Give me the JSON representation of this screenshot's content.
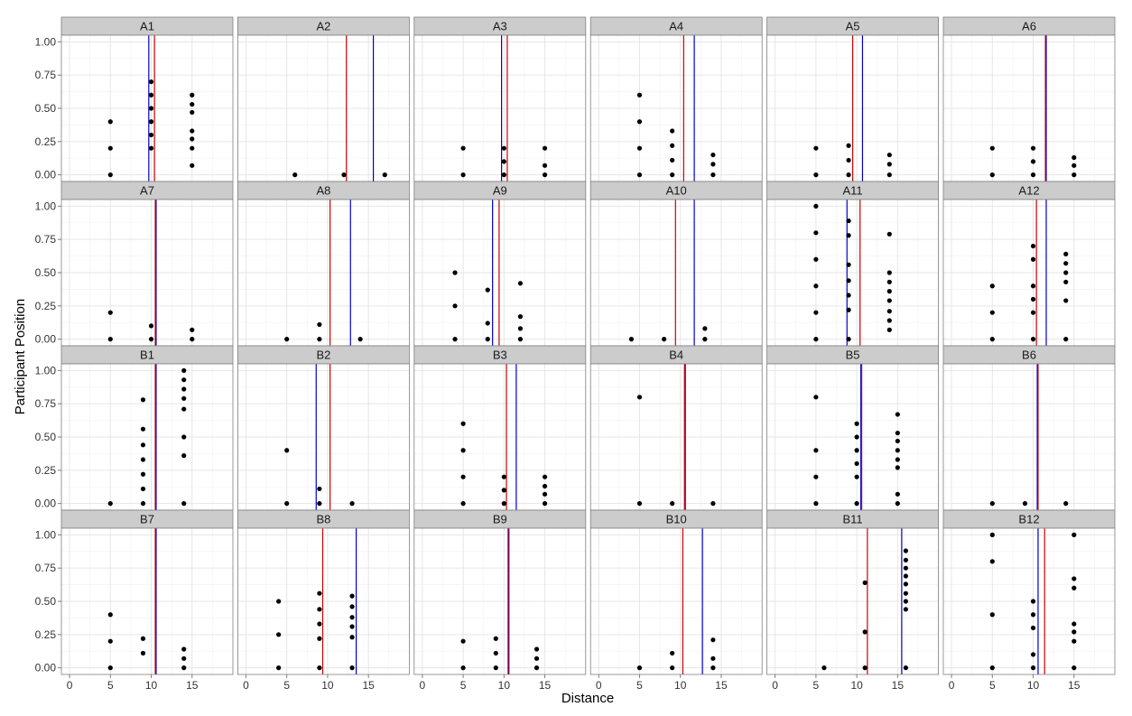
{
  "chart_data": {
    "type": "scatter",
    "xlabel": "Distance",
    "ylabel": "Participant Position",
    "xlim": [
      -1,
      20
    ],
    "ylim": [
      -0.05,
      1.05
    ],
    "x_ticks": [
      0,
      5,
      10,
      15
    ],
    "y_ticks": [
      0.0,
      0.25,
      0.5,
      0.75,
      1.0
    ],
    "y_tick_labels": [
      "0.00",
      "0.25",
      "0.50",
      "0.75",
      "1.00"
    ],
    "grid": true,
    "background": "#ffffff",
    "grid_color": "#e6e6e6",
    "strip_color": "#cccccc",
    "point_color": "#000000",
    "red_line_color": "#cc0000",
    "blue_line_color": "#0000cc",
    "columns": 6,
    "rows": 4,
    "panels": [
      {
        "label": "A1",
        "red": 10.4,
        "blue": 9.7,
        "points": [
          [
            5,
            0.4
          ],
          [
            5,
            0.2
          ],
          [
            5,
            0
          ],
          [
            10,
            0.7
          ],
          [
            10,
            0.6
          ],
          [
            10,
            0.5
          ],
          [
            10,
            0.4
          ],
          [
            10,
            0.3
          ],
          [
            10,
            0.2
          ],
          [
            15,
            0.6
          ],
          [
            15,
            0.53
          ],
          [
            15,
            0.47
          ],
          [
            15,
            0.33
          ],
          [
            15,
            0.27
          ],
          [
            15,
            0.2
          ],
          [
            15,
            0.07
          ]
        ]
      },
      {
        "label": "A2",
        "red": 12.3,
        "blue": 15.6,
        "points": [
          [
            6,
            0
          ],
          [
            12,
            0
          ],
          [
            17,
            0
          ]
        ]
      },
      {
        "label": "A3",
        "red": 10.4,
        "blue": 9.7,
        "points": [
          [
            5,
            0.2
          ],
          [
            5,
            0
          ],
          [
            10,
            0.2
          ],
          [
            10,
            0.1
          ],
          [
            10,
            0
          ],
          [
            15,
            0.2
          ],
          [
            15,
            0.07
          ],
          [
            15,
            0
          ]
        ]
      },
      {
        "label": "A4",
        "red": 10.4,
        "blue": 11.7,
        "points": [
          [
            5,
            0.6
          ],
          [
            5,
            0.4
          ],
          [
            5,
            0.2
          ],
          [
            5,
            0
          ],
          [
            9,
            0.33
          ],
          [
            9,
            0.22
          ],
          [
            9,
            0.11
          ],
          [
            9,
            0
          ],
          [
            14,
            0.15
          ],
          [
            14,
            0.08
          ],
          [
            14,
            0
          ]
        ]
      },
      {
        "label": "A5",
        "red": 9.5,
        "blue": 10.7,
        "points": [
          [
            5,
            0.2
          ],
          [
            5,
            0
          ],
          [
            9,
            0.22
          ],
          [
            9,
            0.11
          ],
          [
            9,
            0
          ],
          [
            14,
            0.15
          ],
          [
            14,
            0.08
          ],
          [
            14,
            0
          ]
        ]
      },
      {
        "label": "A6",
        "red": 11.5,
        "blue": 11.6,
        "points": [
          [
            5,
            0.2
          ],
          [
            5,
            0
          ],
          [
            10,
            0.2
          ],
          [
            10,
            0.1
          ],
          [
            10,
            0
          ],
          [
            15,
            0.13
          ],
          [
            15,
            0.07
          ],
          [
            15,
            0
          ]
        ]
      },
      {
        "label": "A7",
        "red": 10.5,
        "blue": 10.6,
        "points": [
          [
            5,
            0.2
          ],
          [
            5,
            0
          ],
          [
            10,
            0.1
          ],
          [
            10,
            0
          ],
          [
            15,
            0.07
          ],
          [
            15,
            0
          ]
        ]
      },
      {
        "label": "A8",
        "red": 10.3,
        "blue": 12.8,
        "points": [
          [
            5,
            0
          ],
          [
            9,
            0.11
          ],
          [
            9,
            0
          ],
          [
            14,
            0
          ]
        ]
      },
      {
        "label": "A9",
        "red": 9.4,
        "blue": 8.6,
        "points": [
          [
            4,
            0.5
          ],
          [
            4,
            0.25
          ],
          [
            4,
            0
          ],
          [
            8,
            0.37
          ],
          [
            8,
            0.12
          ],
          [
            8,
            0
          ],
          [
            12,
            0.42
          ],
          [
            12,
            0.17
          ],
          [
            12,
            0.08
          ],
          [
            12,
            0
          ]
        ]
      },
      {
        "label": "A10",
        "red": 9.4,
        "blue": 11.7,
        "points": [
          [
            4,
            0
          ],
          [
            8,
            0
          ],
          [
            13,
            0.08
          ],
          [
            13,
            0
          ]
        ]
      },
      {
        "label": "A11",
        "red": 10.4,
        "blue": 8.8,
        "points": [
          [
            5,
            1
          ],
          [
            5,
            0.8
          ],
          [
            5,
            0.6
          ],
          [
            5,
            0.4
          ],
          [
            5,
            0.2
          ],
          [
            5,
            0
          ],
          [
            9,
            0.89
          ],
          [
            9,
            0.78
          ],
          [
            9,
            0.56
          ],
          [
            9,
            0.44
          ],
          [
            9,
            0.33
          ],
          [
            9,
            0.22
          ],
          [
            9,
            0
          ],
          [
            14,
            0.79
          ],
          [
            14,
            0.5
          ],
          [
            14,
            0.43
          ],
          [
            14,
            0.36
          ],
          [
            14,
            0.29
          ],
          [
            14,
            0.21
          ],
          [
            14,
            0.14
          ],
          [
            14,
            0.07
          ]
        ]
      },
      {
        "label": "A12",
        "red": 10.4,
        "blue": 11.6,
        "points": [
          [
            5,
            0.4
          ],
          [
            5,
            0.2
          ],
          [
            5,
            0
          ],
          [
            10,
            0.7
          ],
          [
            10,
            0.6
          ],
          [
            10,
            0.4
          ],
          [
            10,
            0.3
          ],
          [
            10,
            0.2
          ],
          [
            10,
            0
          ],
          [
            14,
            0.64
          ],
          [
            14,
            0.57
          ],
          [
            14,
            0.5
          ],
          [
            14,
            0.43
          ],
          [
            14,
            0.29
          ],
          [
            14,
            0
          ]
        ]
      },
      {
        "label": "B1",
        "red": 10.5,
        "blue": 10.6,
        "points": [
          [
            5,
            0
          ],
          [
            9,
            0.78
          ],
          [
            9,
            0.56
          ],
          [
            9,
            0.44
          ],
          [
            9,
            0.33
          ],
          [
            9,
            0.22
          ],
          [
            9,
            0.11
          ],
          [
            9,
            0
          ],
          [
            14,
            1
          ],
          [
            14,
            0.93
          ],
          [
            14,
            0.86
          ],
          [
            14,
            0.79
          ],
          [
            14,
            0.71
          ],
          [
            14,
            0.5
          ],
          [
            14,
            0.36
          ],
          [
            14,
            0
          ]
        ]
      },
      {
        "label": "B2",
        "red": 10.3,
        "blue": 8.6,
        "points": [
          [
            5,
            0.4
          ],
          [
            5,
            0
          ],
          [
            9,
            0.11
          ],
          [
            9,
            0
          ],
          [
            13,
            0
          ]
        ]
      },
      {
        "label": "B3",
        "red": 10.3,
        "blue": 11.5,
        "points": [
          [
            5,
            0.6
          ],
          [
            5,
            0.4
          ],
          [
            5,
            0.2
          ],
          [
            5,
            0
          ],
          [
            10,
            0.2
          ],
          [
            10,
            0.1
          ],
          [
            10,
            0
          ],
          [
            15,
            0.2
          ],
          [
            15,
            0.13
          ],
          [
            15,
            0.07
          ],
          [
            15,
            0
          ]
        ]
      },
      {
        "label": "B4",
        "red": 10.5,
        "blue": 10.6,
        "points": [
          [
            5,
            0.8
          ],
          [
            5,
            0
          ],
          [
            9,
            0
          ],
          [
            14,
            0
          ]
        ]
      },
      {
        "label": "B5",
        "red": 10.6,
        "blue": 10.5,
        "points": [
          [
            5,
            0.8
          ],
          [
            5,
            0.4
          ],
          [
            5,
            0.2
          ],
          [
            5,
            0
          ],
          [
            10,
            0.6
          ],
          [
            10,
            0.5
          ],
          [
            10,
            0.4
          ],
          [
            10,
            0.3
          ],
          [
            10,
            0.2
          ],
          [
            10,
            0
          ],
          [
            15,
            0.67
          ],
          [
            15,
            0.53
          ],
          [
            15,
            0.47
          ],
          [
            15,
            0.4
          ],
          [
            15,
            0.33
          ],
          [
            15,
            0.27
          ],
          [
            15,
            0.07
          ],
          [
            15,
            0
          ]
        ]
      },
      {
        "label": "B6",
        "red": 10.6,
        "blue": 10.5,
        "points": [
          [
            5,
            0
          ],
          [
            9,
            0
          ],
          [
            14,
            0
          ]
        ]
      },
      {
        "label": "B7",
        "red": 10.5,
        "blue": 10.6,
        "points": [
          [
            5,
            0.4
          ],
          [
            5,
            0.2
          ],
          [
            5,
            0
          ],
          [
            9,
            0.22
          ],
          [
            9,
            0.11
          ],
          [
            14,
            0.14
          ],
          [
            14,
            0.07
          ],
          [
            14,
            0
          ]
        ]
      },
      {
        "label": "B8",
        "red": 9.4,
        "blue": 13.5,
        "points": [
          [
            4,
            0.5
          ],
          [
            4,
            0.25
          ],
          [
            4,
            0
          ],
          [
            9,
            0.56
          ],
          [
            9,
            0.44
          ],
          [
            9,
            0.33
          ],
          [
            9,
            0.22
          ],
          [
            9,
            0
          ],
          [
            13,
            0.54
          ],
          [
            13,
            0.46
          ],
          [
            13,
            0.38
          ],
          [
            13,
            0.31
          ],
          [
            13,
            0.23
          ],
          [
            13,
            0
          ]
        ]
      },
      {
        "label": "B9",
        "red": 10.5,
        "blue": 10.6,
        "points": [
          [
            5,
            0.2
          ],
          [
            5,
            0
          ],
          [
            9,
            0.22
          ],
          [
            9,
            0.11
          ],
          [
            9,
            0
          ],
          [
            14,
            0.14
          ],
          [
            14,
            0.07
          ],
          [
            14,
            0
          ]
        ]
      },
      {
        "label": "B10",
        "red": 10.3,
        "blue": 12.7,
        "points": [
          [
            5,
            0
          ],
          [
            9,
            0.11
          ],
          [
            9,
            0
          ],
          [
            14,
            0.21
          ],
          [
            14,
            0.07
          ],
          [
            14,
            0
          ]
        ]
      },
      {
        "label": "B11",
        "red": 11.3,
        "blue": 15.5,
        "points": [
          [
            6,
            0
          ],
          [
            11,
            0.64
          ],
          [
            11,
            0.27
          ],
          [
            11,
            0
          ],
          [
            16,
            0.88
          ],
          [
            16,
            0.81
          ],
          [
            16,
            0.75
          ],
          [
            16,
            0.69
          ],
          [
            16,
            0.63
          ],
          [
            16,
            0.56
          ],
          [
            16,
            0.5
          ],
          [
            16,
            0.44
          ],
          [
            16,
            0
          ]
        ]
      },
      {
        "label": "B12",
        "red": 11.4,
        "blue": 10.6,
        "points": [
          [
            5,
            1
          ],
          [
            5,
            0.8
          ],
          [
            5,
            0.4
          ],
          [
            5,
            0
          ],
          [
            10,
            0.5
          ],
          [
            10,
            0.4
          ],
          [
            10,
            0.3
          ],
          [
            10,
            0.1
          ],
          [
            10,
            0
          ],
          [
            15,
            1
          ],
          [
            15,
            0.67
          ],
          [
            15,
            0.6
          ],
          [
            15,
            0.33
          ],
          [
            15,
            0.27
          ],
          [
            15,
            0.2
          ],
          [
            15,
            0
          ]
        ]
      }
    ]
  }
}
